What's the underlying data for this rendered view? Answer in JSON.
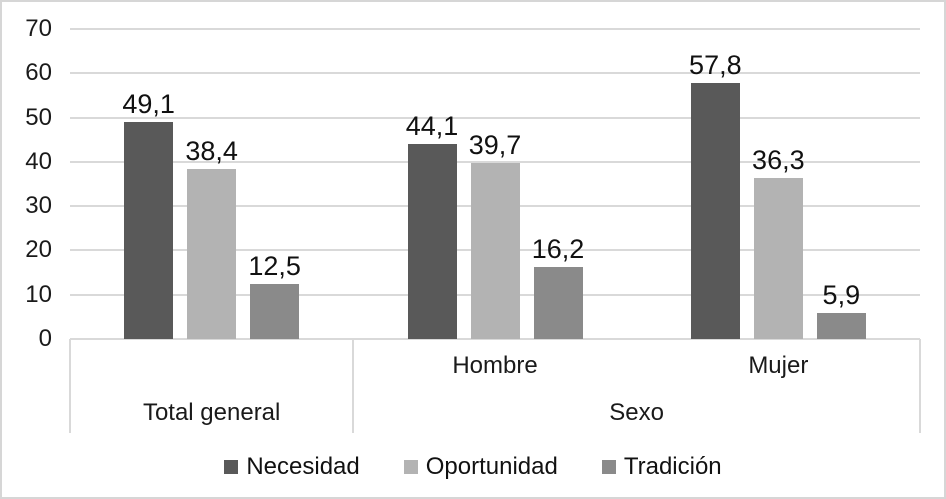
{
  "chart_data": {
    "type": "bar",
    "title": "",
    "xlabel": "",
    "ylabel": "",
    "ylim": [
      0,
      70
    ],
    "grid": "horizontal",
    "gridline_color": "#d9d9d9",
    "text_color": "#1a1a1a",
    "y_axis": {
      "min": 0,
      "max": 70,
      "step": 10,
      "ticks": [
        0,
        10,
        20,
        30,
        40,
        50,
        60,
        70
      ],
      "tick_labels": [
        "0",
        "10",
        "20",
        "30",
        "40",
        "50",
        "60",
        "70"
      ]
    },
    "x_axis": {
      "categories": [
        "Total general",
        "Hombre",
        "Mujer"
      ],
      "groups": [
        {
          "label": "Total general",
          "span": [
            0,
            0
          ],
          "sub_labels_shown": false
        },
        {
          "label": "Sexo",
          "span": [
            1,
            2
          ],
          "sub_labels_shown": true
        }
      ]
    },
    "series": [
      {
        "name": "Necesidad",
        "color": "#595959",
        "values": [
          49.1,
          44.1,
          57.8
        ],
        "value_labels": [
          "49,1",
          "44,1",
          "57,8"
        ]
      },
      {
        "name": "Oportunidad",
        "color": "#b3b3b3",
        "values": [
          38.4,
          39.7,
          36.3
        ],
        "value_labels": [
          "38,4",
          "39,7",
          "36,3"
        ]
      },
      {
        "name": "Tradición",
        "color": "#8a8a8a",
        "values": [
          12.5,
          16.2,
          5.9
        ],
        "value_labels": [
          "12,5",
          "16,2",
          "5,9"
        ]
      }
    ],
    "legend": {
      "position": "bottom",
      "items": [
        "Necesidad",
        "Oportunidad",
        "Tradición"
      ]
    }
  }
}
